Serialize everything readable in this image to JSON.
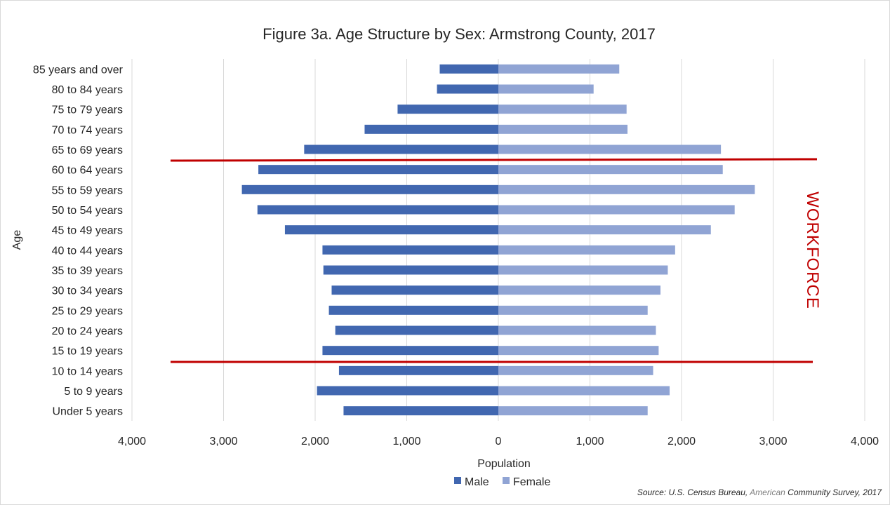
{
  "chart_data": {
    "type": "bar",
    "orientation": "horizontal",
    "title": "Figure 3a. Age Structure by Sex: Armstrong County, 2017",
    "xlabel": "Population",
    "ylabel": "Age",
    "xlim": [
      -4000,
      4000
    ],
    "x_ticks": [
      -4000,
      -3000,
      -2000,
      -1000,
      0,
      1000,
      2000,
      3000,
      4000
    ],
    "x_tick_labels": [
      "4,000",
      "3,000",
      "2,000",
      "1,000",
      "0",
      "1,000",
      "2,000",
      "3,000",
      "4,000"
    ],
    "grid": "vertical",
    "legend_position": "bottom",
    "categories": [
      "85 years and over",
      "80 to 84 years",
      "75 to 79 years",
      "70 to 74 years",
      "65 to 69 years",
      "60 to 64 years",
      "55 to 59 years",
      "50 to 54 years",
      "45 to 49 years",
      "40 to 44 years",
      "35 to 39 years",
      "30 to 34 years",
      "25 to 29 years",
      "20 to 24 years",
      "15 to 19 years",
      "10 to 14 years",
      "5 to 9 years",
      "Under 5 years"
    ],
    "series": [
      {
        "name": "Male",
        "color": "#4167b0",
        "side": "left",
        "values": [
          640,
          670,
          1100,
          1460,
          2120,
          2620,
          2800,
          2630,
          2330,
          1920,
          1910,
          1820,
          1850,
          1780,
          1920,
          1740,
          1980,
          1690
        ]
      },
      {
        "name": "Female",
        "color": "#90a4d4",
        "side": "right",
        "values": [
          1320,
          1040,
          1400,
          1410,
          2430,
          2450,
          2800,
          2580,
          2320,
          1930,
          1850,
          1770,
          1630,
          1720,
          1750,
          1690,
          1870,
          1630
        ]
      }
    ],
    "annotations": {
      "workforce_label": "WORKFORCE",
      "workforce_color": "#c00000"
    },
    "source_prefix": "Source: U.S. Census Bureau, ",
    "source_em": "American",
    "source_suffix": " Community Survey, 2017"
  }
}
